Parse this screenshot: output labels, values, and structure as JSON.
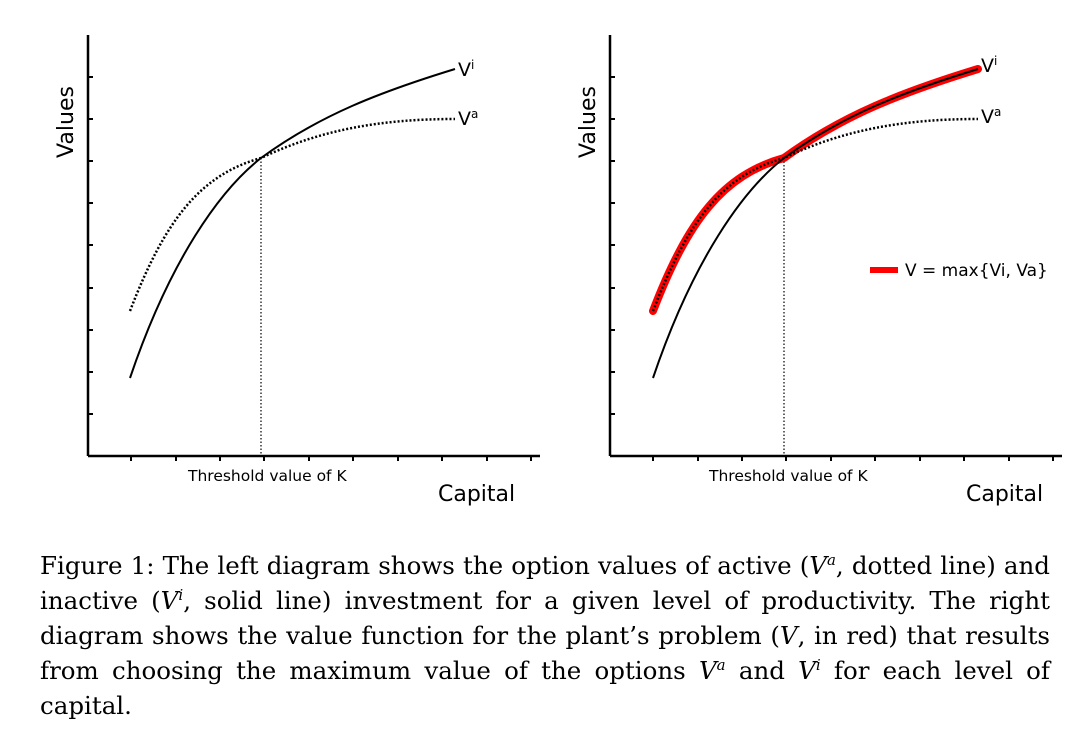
{
  "chart_data": [
    {
      "type": "line",
      "title": "",
      "xlabel": "Capital",
      "ylabel": "Values",
      "x_annotation": "Threshold value of K",
      "grid": false,
      "series": [
        {
          "name": "Vi",
          "style": "solid",
          "color": "#000000",
          "label_base": "V",
          "label_sup": "i"
        },
        {
          "name": "Va",
          "style": "dotted",
          "color": "#000000",
          "label_base": "V",
          "label_sup": "a"
        }
      ]
    },
    {
      "type": "line",
      "title": "",
      "xlabel": "Capital",
      "ylabel": "Values",
      "x_annotation": "Threshold value of K",
      "grid": false,
      "legend": {
        "text": "V = max{Vi, Va}",
        "placement": "right",
        "color": "#ff0000"
      },
      "series": [
        {
          "name": "Vi",
          "style": "solid",
          "color": "#000000",
          "label_base": "V",
          "label_sup": "i"
        },
        {
          "name": "Va",
          "style": "dotted",
          "color": "#000000",
          "label_base": "V",
          "label_sup": "a"
        },
        {
          "name": "V = max{Vi, Va}",
          "style": "thick",
          "color": "#ff0000"
        }
      ]
    }
  ],
  "caption": {
    "p1": "Figure 1: The left diagram shows the option values of active (",
    "p2": ", dotted line) and inactive (",
    "p3": ", solid line) investment for a given level of productivity. The right diagram shows the value function for the plant’s problem (",
    "p4": ", in red) that results from choosing the maximum value of the options ",
    "p5": " and ",
    "p6": " for each level of capital.",
    "sym_v": "V",
    "sup_a": "a",
    "sup_i": "i"
  }
}
